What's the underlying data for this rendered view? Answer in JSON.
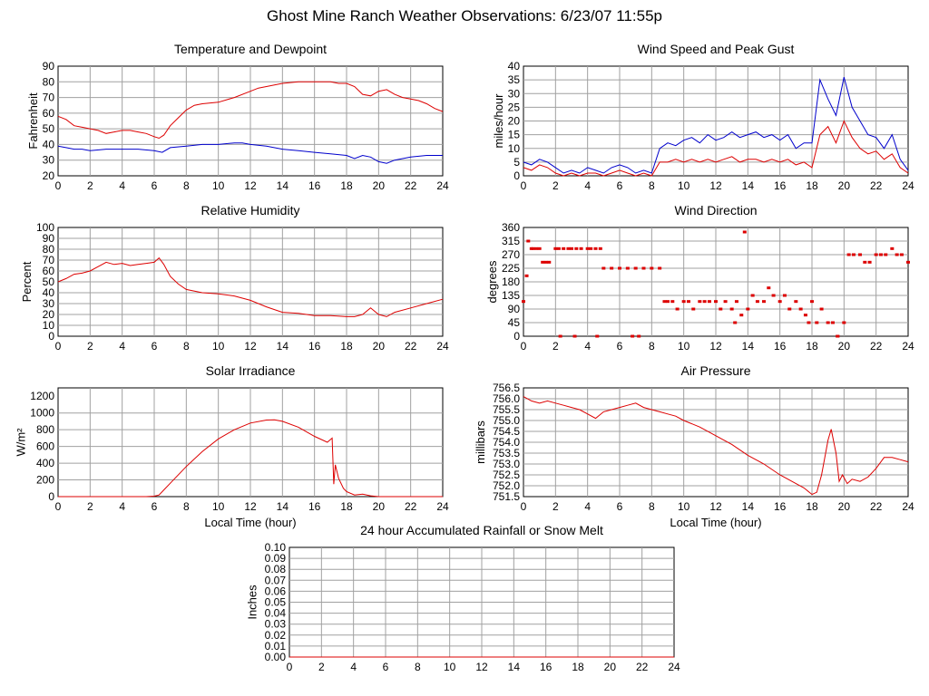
{
  "title": "Ghost Mine Ranch Weather Observations: 6/23/07 11:55p",
  "colors": {
    "red": "#dd0000",
    "blue": "#0000cc",
    "grid": "#a0a0a0"
  },
  "chart_data": [
    {
      "id": "temp",
      "type": "line",
      "title": "Temperature and Dewpoint",
      "ylabel": "Fahrenheit",
      "xlabel": "",
      "ylim": [
        20,
        90
      ],
      "yticks": [
        "20",
        "30",
        "40",
        "50",
        "60",
        "70",
        "80",
        "90"
      ],
      "xlim": [
        0,
        24
      ],
      "xticks": [
        "0",
        "2",
        "4",
        "6",
        "8",
        "10",
        "12",
        "14",
        "16",
        "18",
        "20",
        "22",
        "24"
      ],
      "series": [
        {
          "color": "#dd0000",
          "x": [
            0,
            0.5,
            1,
            1.5,
            2,
            2.5,
            3,
            3.5,
            4,
            4.5,
            5,
            5.5,
            6,
            6.3,
            6.6,
            7,
            7.5,
            8,
            8.5,
            9,
            10,
            11,
            12,
            12.5,
            13,
            14,
            15,
            16,
            17,
            17.5,
            18,
            18.5,
            19,
            19.5,
            20,
            20.5,
            21,
            21.5,
            22,
            22.5,
            23,
            23.5,
            24
          ],
          "y": [
            58,
            56,
            52,
            51,
            50,
            49,
            47,
            48,
            49,
            49,
            48,
            47,
            45,
            44,
            46,
            52,
            57,
            62,
            65,
            66,
            67,
            70,
            74,
            76,
            77,
            79,
            80,
            80,
            80,
            79,
            79,
            77,
            72,
            71,
            74,
            75,
            72,
            70,
            69,
            68,
            66,
            63,
            61
          ]
        },
        {
          "color": "#0000cc",
          "x": [
            0,
            0.5,
            1,
            1.5,
            2,
            3,
            4,
            5,
            6,
            6.5,
            7,
            8,
            9,
            10,
            11,
            11.5,
            12,
            13,
            14,
            15,
            16,
            17,
            18,
            18.5,
            19,
            19.5,
            20,
            20.5,
            21,
            22,
            23,
            24
          ],
          "y": [
            39,
            38,
            37,
            37,
            36,
            37,
            37,
            37,
            36,
            35,
            38,
            39,
            40,
            40,
            41,
            41,
            40,
            39,
            37,
            36,
            35,
            34,
            33,
            31,
            33,
            32,
            29,
            28,
            30,
            32,
            33,
            33
          ]
        }
      ]
    },
    {
      "id": "wind",
      "type": "line",
      "title": "Wind Speed and Peak Gust",
      "ylabel": "miles/hour",
      "xlabel": "",
      "ylim": [
        0,
        40
      ],
      "yticks": [
        "0",
        "5",
        "10",
        "15",
        "20",
        "25",
        "30",
        "35",
        "40"
      ],
      "xlim": [
        0,
        24
      ],
      "xticks": [
        "0",
        "2",
        "4",
        "6",
        "8",
        "10",
        "12",
        "14",
        "16",
        "18",
        "20",
        "22",
        "24"
      ],
      "series": [
        {
          "color": "#0000cc",
          "x": [
            0,
            0.5,
            1,
            1.5,
            2,
            2.5,
            3,
            3.5,
            4,
            4.5,
            5,
            5.5,
            6,
            6.5,
            7,
            7.5,
            8,
            8.5,
            9,
            9.5,
            10,
            10.5,
            11,
            11.5,
            12,
            12.5,
            13,
            13.5,
            14,
            14.5,
            15,
            15.5,
            16,
            16.5,
            17,
            17.5,
            18,
            18.5,
            19,
            19.5,
            20,
            20.5,
            21,
            21.5,
            22,
            22.5,
            23,
            23.5,
            24
          ],
          "y": [
            5,
            4,
            6,
            5,
            3,
            1,
            2,
            1,
            3,
            2,
            1,
            3,
            4,
            3,
            1,
            2,
            1,
            10,
            12,
            11,
            13,
            14,
            12,
            15,
            13,
            14,
            16,
            14,
            15,
            16,
            14,
            15,
            13,
            15,
            10,
            12,
            12,
            35,
            28,
            22,
            36,
            25,
            20,
            15,
            14,
            10,
            15,
            6,
            2
          ]
        },
        {
          "color": "#dd0000",
          "x": [
            0,
            0.5,
            1,
            1.5,
            2,
            2.5,
            3,
            3.5,
            4,
            4.5,
            5,
            5.5,
            6,
            6.5,
            7,
            7.5,
            8,
            8.5,
            9,
            9.5,
            10,
            10.5,
            11,
            11.5,
            12,
            12.5,
            13,
            13.5,
            14,
            14.5,
            15,
            15.5,
            16,
            16.5,
            17,
            17.5,
            18,
            18.5,
            19,
            19.5,
            20,
            20.5,
            21,
            21.5,
            22,
            22.5,
            23,
            23.5,
            24
          ],
          "y": [
            3,
            2,
            4,
            3,
            1,
            0,
            1,
            0,
            1,
            1,
            0,
            1,
            2,
            1,
            0,
            1,
            0,
            5,
            5,
            6,
            5,
            6,
            5,
            6,
            5,
            6,
            7,
            5,
            6,
            6,
            5,
            6,
            5,
            6,
            4,
            5,
            3,
            15,
            18,
            12,
            20,
            14,
            10,
            8,
            9,
            6,
            8,
            3,
            1
          ]
        }
      ]
    },
    {
      "id": "rh",
      "type": "line",
      "title": "Relative Humidity",
      "ylabel": "Percent",
      "xlabel": "",
      "ylim": [
        0,
        100
      ],
      "yticks": [
        "0",
        "10",
        "20",
        "30",
        "40",
        "50",
        "60",
        "70",
        "80",
        "90",
        "100"
      ],
      "xlim": [
        0,
        24
      ],
      "xticks": [
        "0",
        "2",
        "4",
        "6",
        "8",
        "10",
        "12",
        "14",
        "16",
        "18",
        "20",
        "22",
        "24"
      ],
      "series": [
        {
          "color": "#dd0000",
          "x": [
            0,
            0.5,
            1,
            1.5,
            2,
            2.5,
            3,
            3.5,
            4,
            4.5,
            5,
            5.5,
            6,
            6.3,
            6.6,
            7,
            7.5,
            8,
            9,
            10,
            11,
            12,
            13,
            14,
            15,
            16,
            17,
            18,
            18.5,
            19,
            19.5,
            20,
            20.5,
            21,
            22,
            23,
            24
          ],
          "y": [
            50,
            53,
            57,
            58,
            60,
            64,
            68,
            66,
            67,
            65,
            66,
            67,
            68,
            72,
            66,
            55,
            48,
            43,
            40,
            39,
            37,
            33,
            27,
            22,
            21,
            19,
            19,
            18,
            18,
            20,
            26,
            20,
            18,
            22,
            26,
            30,
            34
          ]
        }
      ]
    },
    {
      "id": "dir",
      "type": "scatter",
      "title": "Wind Direction",
      "ylabel": "degrees",
      "xlabel": "",
      "ylim": [
        0,
        360
      ],
      "yticks": [
        "0",
        "45",
        "90",
        "135",
        "180",
        "225",
        "270",
        "315",
        "360"
      ],
      "xlim": [
        0,
        24
      ],
      "xticks": [
        "0",
        "2",
        "4",
        "6",
        "8",
        "10",
        "12",
        "14",
        "16",
        "18",
        "20",
        "22",
        "24"
      ],
      "series": [
        {
          "color": "#dd0000",
          "x": [
            0,
            0.2,
            0.3,
            0.5,
            0.6,
            0.8,
            1,
            1.2,
            1.4,
            1.6,
            2,
            2.2,
            2.5,
            2.8,
            3,
            3.3,
            3.6,
            4,
            4.2,
            4.5,
            4.8,
            5,
            5.5,
            6,
            6.5,
            7,
            7.5,
            8,
            8.5,
            8.8,
            9,
            9.3,
            9.6,
            10,
            10.3,
            10.6,
            11,
            11.3,
            11.6,
            12,
            12.3,
            12.6,
            13,
            13.3,
            13.6,
            14,
            14.3,
            14.6,
            15,
            15.3,
            15.6,
            16,
            16.3,
            16.6,
            17,
            17.3,
            17.6,
            18,
            18.3,
            18.6,
            19,
            19.3,
            19.6,
            20,
            20.3,
            20.6,
            21,
            21.3,
            21.6,
            22,
            22.3,
            22.6,
            23,
            23.3,
            23.6,
            24,
            2.3,
            3.2,
            4.6,
            6.8,
            7.2,
            13.2,
            13.8,
            17.8,
            19.6
          ],
          "y": [
            115,
            200,
            315,
            290,
            290,
            290,
            290,
            245,
            245,
            245,
            290,
            290,
            290,
            290,
            290,
            290,
            290,
            290,
            290,
            290,
            290,
            225,
            225,
            225,
            225,
            225,
            225,
            225,
            225,
            115,
            115,
            115,
            90,
            115,
            115,
            90,
            115,
            115,
            115,
            115,
            90,
            115,
            90,
            115,
            70,
            90,
            135,
            115,
            115,
            160,
            135,
            115,
            135,
            90,
            115,
            90,
            70,
            115,
            45,
            90,
            45,
            45,
            0,
            45,
            270,
            270,
            270,
            245,
            245,
            270,
            270,
            270,
            290,
            270,
            270,
            245,
            0,
            0,
            0,
            0,
            0,
            45,
            345,
            45,
            0
          ]
        }
      ]
    },
    {
      "id": "solar",
      "type": "line",
      "title": "Solar Irradiance",
      "ylabel": "W/m²",
      "xlabel": "Local Time (hour)",
      "ylim": [
        0,
        1300
      ],
      "yticks": [
        "0",
        "200",
        "400",
        "600",
        "800",
        "1000",
        "1200"
      ],
      "xlim": [
        0,
        24
      ],
      "xticks": [
        "0",
        "2",
        "4",
        "6",
        "8",
        "10",
        "12",
        "14",
        "16",
        "18",
        "20",
        "22",
        "24"
      ],
      "series": [
        {
          "color": "#dd0000",
          "x": [
            0,
            5.5,
            6,
            6.3,
            6.6,
            7,
            8,
            9,
            10,
            11,
            12,
            13,
            13.5,
            14,
            15,
            16,
            16.8,
            17.1,
            17.2,
            17.3,
            17.5,
            17.8,
            18,
            18.5,
            19,
            19.5,
            20,
            24
          ],
          "y": [
            0,
            0,
            5,
            20,
            80,
            160,
            360,
            540,
            690,
            800,
            880,
            915,
            918,
            900,
            830,
            720,
            650,
            700,
            150,
            380,
            220,
            100,
            60,
            20,
            30,
            10,
            0,
            0
          ]
        }
      ]
    },
    {
      "id": "pressure",
      "type": "line",
      "title": "Air Pressure",
      "ylabel": "millibars",
      "xlabel": "Local Time (hour)",
      "ylim": [
        751.5,
        756.5
      ],
      "yticks": [
        "751.5",
        "752.0",
        "752.5",
        "753.0",
        "753.5",
        "754.0",
        "754.5",
        "755.0",
        "755.5",
        "756.0",
        "756.5"
      ],
      "xlim": [
        0,
        24
      ],
      "xticks": [
        "0",
        "2",
        "4",
        "6",
        "8",
        "10",
        "12",
        "14",
        "16",
        "18",
        "20",
        "22",
        "24"
      ],
      "series": [
        {
          "color": "#dd0000",
          "x": [
            0,
            0.5,
            1,
            1.5,
            2,
            2.5,
            3,
            3.5,
            4,
            4.5,
            5,
            5.5,
            6,
            6.5,
            7,
            7.5,
            8,
            8.5,
            9,
            9.5,
            10,
            11,
            12,
            13,
            14,
            15,
            16,
            17,
            17.5,
            18,
            18.3,
            18.6,
            19,
            19.2,
            19.5,
            19.7,
            19.9,
            20.2,
            20.5,
            21,
            21.5,
            22,
            22.5,
            23,
            23.5,
            24
          ],
          "y": [
            756.1,
            755.9,
            755.8,
            755.9,
            755.8,
            755.7,
            755.6,
            755.5,
            755.3,
            755.1,
            755.4,
            755.5,
            755.6,
            755.7,
            755.8,
            755.6,
            755.5,
            755.4,
            755.3,
            755.2,
            755.0,
            754.7,
            754.3,
            753.9,
            753.4,
            753.0,
            752.5,
            752.1,
            751.9,
            751.6,
            751.7,
            752.5,
            754.1,
            754.6,
            753.5,
            752.2,
            752.5,
            752.1,
            752.3,
            752.2,
            752.4,
            752.8,
            753.3,
            753.3,
            753.2,
            753.1
          ]
        }
      ]
    },
    {
      "id": "rain",
      "type": "line",
      "title": "24 hour Accumulated Rainfall or Snow Melt",
      "ylabel": "Inches",
      "xlabel": "",
      "ylim": [
        0,
        0.1
      ],
      "yticks": [
        "0.00",
        "0.01",
        "0.02",
        "0.03",
        "0.04",
        "0.05",
        "0.06",
        "0.07",
        "0.08",
        "0.09",
        "0.10"
      ],
      "xlim": [
        0,
        24
      ],
      "xticks": [
        "0",
        "2",
        "4",
        "6",
        "8",
        "10",
        "12",
        "14",
        "16",
        "18",
        "20",
        "22",
        "24"
      ],
      "series": [
        {
          "color": "#dd0000",
          "x": [
            0,
            24
          ],
          "y": [
            0,
            0
          ]
        }
      ]
    }
  ]
}
